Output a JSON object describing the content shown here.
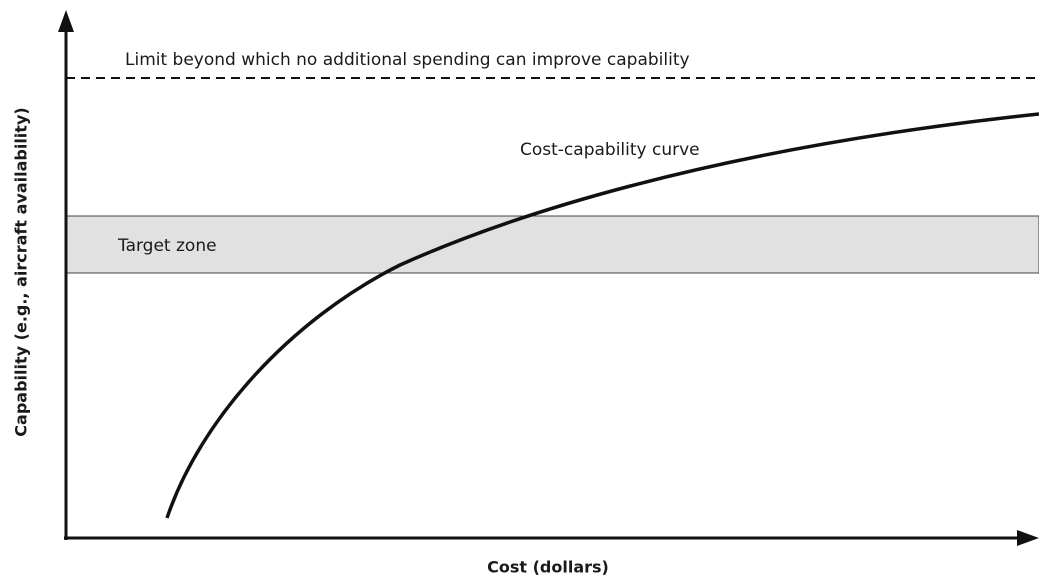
{
  "diagram": {
    "limit_label": "Limit beyond which no additional spending can improve capability",
    "curve_label": "Cost-capability curve",
    "zone_label": "Target zone",
    "x_axis_label": "Cost (dollars)",
    "y_axis_label": "Capability (e.g., aircraft availability)"
  }
}
